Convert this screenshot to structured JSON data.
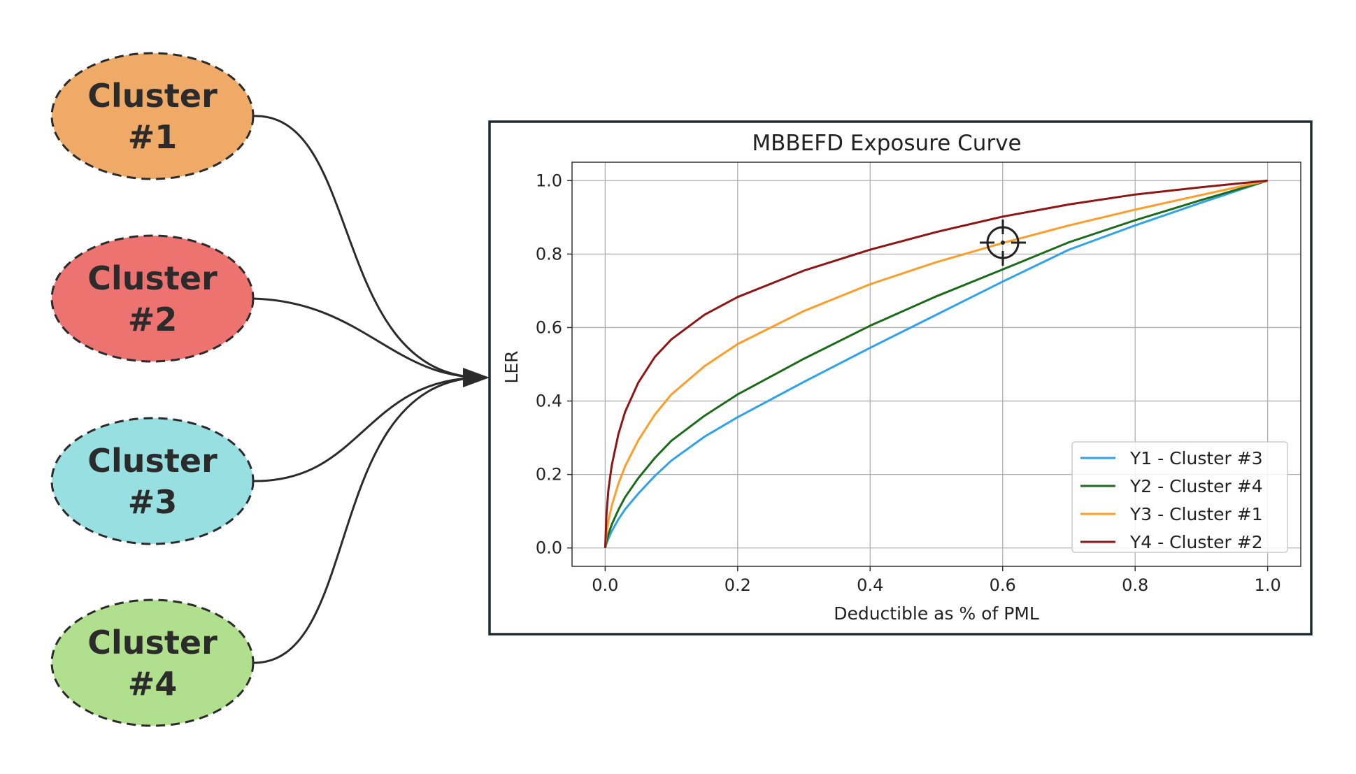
{
  "clusters": [
    {
      "label_line1": "Cluster",
      "label_line2": "#1",
      "color": "#F0AA68"
    },
    {
      "label_line1": "Cluster",
      "label_line2": "#2",
      "color": "#EC7370"
    },
    {
      "label_line1": "Cluster",
      "label_line2": "#3",
      "color": "#97DFE0"
    },
    {
      "label_line1": "Cluster",
      "label_line2": "#4",
      "color": "#B0E08E"
    }
  ],
  "chart_data": {
    "type": "line",
    "title": "MBBEFD Exposure Curve",
    "xlabel": "Deductible as % of PML",
    "ylabel": "LER",
    "xlim": [
      -0.05,
      1.05
    ],
    "ylim": [
      -0.05,
      1.05
    ],
    "xticks": [
      "0.0",
      "0.2",
      "0.4",
      "0.6",
      "0.8",
      "1.0"
    ],
    "yticks": [
      "0.0",
      "0.2",
      "0.4",
      "0.6",
      "0.8",
      "1.0"
    ],
    "grid": true,
    "legend_position": "lower-right",
    "x": [
      0,
      0.002,
      0.005,
      0.01,
      0.02,
      0.03,
      0.05,
      0.075,
      0.1,
      0.15,
      0.2,
      0.3,
      0.4,
      0.5,
      0.6,
      0.7,
      0.8,
      0.9,
      1.0
    ],
    "series": [
      {
        "name": "Y1 - Cluster #3",
        "color": "#2FA2EA",
        "values": [
          0,
          0.012,
          0.026,
          0.046,
          0.078,
          0.105,
          0.148,
          0.196,
          0.238,
          0.303,
          0.356,
          0.452,
          0.545,
          0.635,
          0.725,
          0.812,
          0.878,
          0.94,
          1.0
        ]
      },
      {
        "name": "Y2 - Cluster #4",
        "color": "#1B6B1B",
        "values": [
          0,
          0.018,
          0.038,
          0.064,
          0.104,
          0.138,
          0.19,
          0.245,
          0.292,
          0.36,
          0.418,
          0.515,
          0.605,
          0.685,
          0.758,
          0.832,
          0.892,
          0.947,
          1.0
        ]
      },
      {
        "name": "Y3 - Cluster #1",
        "color": "#FE9D27",
        "values": [
          0,
          0.04,
          0.075,
          0.115,
          0.175,
          0.222,
          0.293,
          0.363,
          0.418,
          0.495,
          0.555,
          0.645,
          0.718,
          0.778,
          0.83,
          0.878,
          0.921,
          0.961,
          1.0
        ]
      },
      {
        "name": "Y4 - Cluster #2",
        "color": "#8F1515",
        "values": [
          0,
          0.095,
          0.16,
          0.225,
          0.31,
          0.37,
          0.45,
          0.52,
          0.568,
          0.635,
          0.683,
          0.755,
          0.812,
          0.86,
          0.902,
          0.935,
          0.962,
          0.982,
          1.0
        ]
      }
    ]
  }
}
